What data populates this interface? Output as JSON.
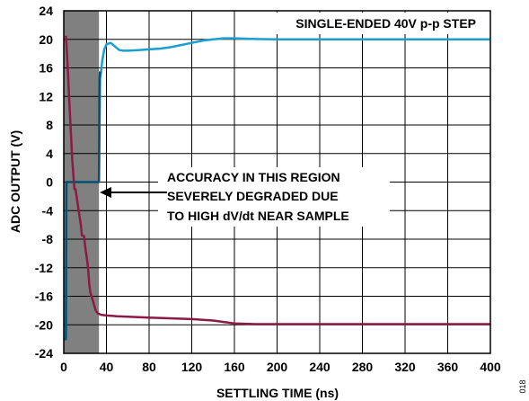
{
  "chart_data": {
    "type": "line",
    "title": "SINGLE-ENDED 40V p-p STEP",
    "xlabel": "SETTLING TIME (ns)",
    "ylabel": "ADC OUTPUT (V)",
    "xlim": [
      0,
      400
    ],
    "ylim": [
      -24,
      24
    ],
    "x_ticks": [
      0,
      40,
      80,
      120,
      160,
      200,
      240,
      280,
      320,
      360,
      400
    ],
    "y_ticks": [
      24,
      20,
      16,
      12,
      8,
      4,
      0,
      -4,
      -8,
      -12,
      -16,
      -20,
      -24
    ],
    "grid": true,
    "shaded_region": {
      "x_start": 0,
      "x_end": 33,
      "color": "#808080"
    },
    "annotation": {
      "lines": [
        "ACCURACY IN THIS REGION",
        "SEVERELY DEGRADED DUE",
        "TO HIGH dV/dt NEAR SAMPLE"
      ],
      "arrow_to": {
        "x": 33,
        "y": 0
      }
    },
    "figure_number": "018",
    "series": [
      {
        "color": "#1a9fd0",
        "x": [
          0,
          1,
          2,
          2.5,
          3,
          4,
          6,
          10,
          20,
          30,
          32,
          33,
          34,
          35,
          36,
          38,
          40,
          44,
          48,
          52,
          56,
          60,
          70,
          80,
          90,
          100,
          110,
          120,
          130,
          140,
          150,
          160,
          170,
          180,
          200,
          240,
          280,
          320,
          360,
          400
        ],
        "y": [
          -22,
          -22,
          -22,
          0,
          0,
          0,
          0,
          0,
          0,
          0,
          0,
          0,
          14.5,
          15.5,
          17.0,
          18.6,
          19.3,
          19.5,
          19.0,
          18.5,
          18.4,
          18.4,
          18.5,
          18.6,
          18.7,
          18.9,
          19.2,
          19.5,
          19.8,
          20.0,
          20.15,
          20.15,
          20.1,
          20.05,
          20.0,
          20.0,
          20.0,
          20.0,
          20.0,
          20.0
        ]
      },
      {
        "color": "#0a4f6a",
        "x": [
          0,
          1,
          2,
          2.5,
          3,
          33,
          33.5,
          34
        ],
        "y": [
          -22,
          -22,
          -22,
          0,
          0,
          0,
          14.5,
          15.5
        ]
      },
      {
        "color": "#8b1a44",
        "x": [
          2,
          3,
          4,
          5,
          6,
          7,
          8,
          9,
          10,
          11,
          12,
          13,
          14,
          15,
          16,
          17,
          18,
          19,
          20,
          21,
          22,
          23,
          24,
          25,
          26,
          27,
          28,
          29,
          30,
          32,
          35,
          40,
          50,
          80,
          120,
          140,
          150,
          160,
          180,
          200,
          240,
          280,
          320,
          360,
          400
        ],
        "y": [
          20.5,
          18,
          15,
          12,
          9,
          6,
          3,
          1,
          -1,
          -1,
          -2,
          -3,
          -4,
          -5,
          -6,
          -7.5,
          -7.5,
          -7.6,
          -9,
          -10,
          -11,
          -12.5,
          -14.5,
          -15.5,
          -16,
          -16.5,
          -17,
          -17.5,
          -18,
          -18.4,
          -18.6,
          -18.7,
          -18.8,
          -19.0,
          -19.2,
          -19.4,
          -19.6,
          -19.8,
          -19.9,
          -19.9,
          -19.9,
          -19.9,
          -19.9,
          -19.9,
          -19.9
        ]
      }
    ]
  }
}
